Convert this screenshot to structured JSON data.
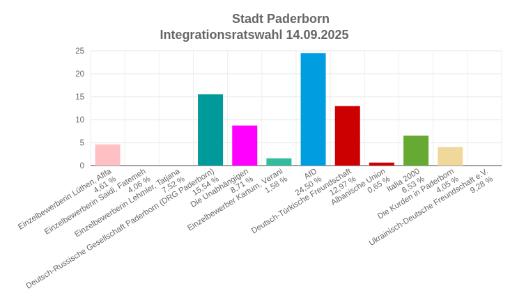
{
  "chart_data": {
    "type": "bar",
    "title": [
      "Stadt Paderborn",
      "Integrationsratswahl 14.09.2025"
    ],
    "categories": [
      "Einzelbewerberin Lüthen, Afifa",
      "Einzelbewerberin Saidi, Fatemeh",
      "Einzelbewerberin Lehmler, Tatjana",
      "Deutsch-Russische Gesellschaft Paderborn (DRG Paderborn)",
      "Die Unabhängigen",
      "Einzelbewerber Kartum, Verani",
      "AfD",
      "Deutsch-Türkische Freundschaft",
      "Albanische Union",
      "Italia 2000",
      "Die Kurden in Paderborn",
      "Ukrainisch-Deutsche Freundschaft e.V."
    ],
    "shares": [
      "4,61 %",
      "4,06 %",
      "7,52 %",
      "15,54 %",
      "8,71 %",
      "1,58 %",
      "24,50 %",
      "12,97 %",
      "0,65 %",
      "6,53 %",
      "4,05 %",
      "9,28 %"
    ],
    "values": [
      4.61,
      null,
      null,
      15.54,
      8.71,
      1.58,
      24.5,
      12.97,
      0.65,
      6.53,
      4.05,
      null
    ],
    "colors": [
      "#ffc0c4",
      "#999999",
      "#999999",
      "#009a9a",
      "#ff00ff",
      "#33bba0",
      "#009ee0",
      "#cc0000",
      "#cc0000",
      "#66aa33",
      "#f0d89c",
      "#999999"
    ],
    "ylim": [
      0,
      25
    ],
    "yticks": [
      0,
      5,
      10,
      15,
      20,
      25
    ],
    "grid": true
  }
}
